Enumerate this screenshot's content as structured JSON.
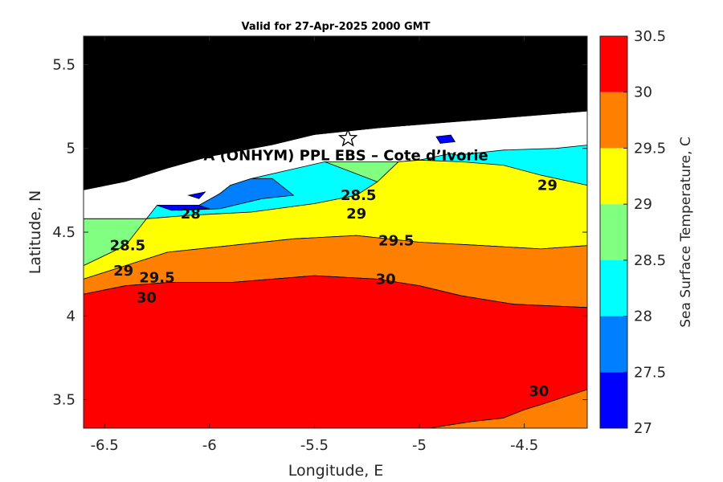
{
  "chart_data": {
    "type": "contour",
    "title": "Valid for 27-Apr-2025 2000 GMT",
    "overlay_text": "A (ONHYM) PPL EBS  – Cote d’Ivorie",
    "xlabel": "Longitude, E",
    "ylabel": "Latitude, N",
    "xlim": [
      -6.6,
      -4.2
    ],
    "ylim": [
      3.33,
      5.67
    ],
    "x_ticks": [
      -6.5,
      -6,
      -5.5,
      -5,
      -4.5
    ],
    "x_tick_labels": [
      "-6.5",
      "-6",
      "-5.5",
      "-5",
      "-4.5"
    ],
    "y_ticks": [
      3.5,
      4,
      4.5,
      5,
      5.5
    ],
    "y_tick_labels": [
      "3.5",
      "4",
      "4.5",
      "5",
      "5.5"
    ],
    "colorbar": {
      "label": "Sea Surface Temperature, C",
      "levels": [
        27,
        27.5,
        28,
        28.5,
        29,
        29.5,
        30,
        30.5
      ],
      "tick_labels": [
        "27",
        "27.5",
        "28",
        "28.5",
        "29",
        "29.5",
        "30",
        "30.5"
      ],
      "colors": [
        "#0000ff",
        "#0080ff",
        "#00ffff",
        "#80ff80",
        "#ffff00",
        "#ff8000",
        "#ff0000"
      ]
    },
    "land_color": "#000000",
    "no_data_color": "#ffffff",
    "site_marker": {
      "symbol": "star",
      "lon": -5.34,
      "lat": 5.06
    },
    "contour_labels": [
      {
        "text": "28.5",
        "lon": -5.29,
        "lat": 4.72
      },
      {
        "text": "29",
        "lon": -4.39,
        "lat": 4.78
      },
      {
        "text": "28",
        "lon": -6.09,
        "lat": 4.61
      },
      {
        "text": "29",
        "lon": -5.3,
        "lat": 4.61
      },
      {
        "text": "28.5",
        "lon": -6.39,
        "lat": 4.42
      },
      {
        "text": "29.5",
        "lon": -5.11,
        "lat": 4.45
      },
      {
        "text": "29",
        "lon": -6.41,
        "lat": 4.27
      },
      {
        "text": "29.5",
        "lon": -6.25,
        "lat": 4.23
      },
      {
        "text": "30",
        "lon": -5.16,
        "lat": 4.22
      },
      {
        "text": "30",
        "lon": -6.3,
        "lat": 4.11
      },
      {
        "text": "30",
        "lon": -4.43,
        "lat": 3.55
      }
    ],
    "regions": [
      {
        "value": "land",
        "polygon": [
          [
            -6.6,
            5.67
          ],
          [
            -4.2,
            5.67
          ],
          [
            -4.2,
            5.22
          ],
          [
            -4.6,
            5.18
          ],
          [
            -4.9,
            5.15
          ],
          [
            -5.2,
            5.12
          ],
          [
            -5.5,
            5.08
          ],
          [
            -5.7,
            5.02
          ],
          [
            -6.0,
            4.95
          ],
          [
            -6.2,
            4.88
          ],
          [
            -6.4,
            4.8
          ],
          [
            -6.6,
            4.75
          ]
        ]
      },
      {
        "value": "no-data",
        "polygon": [
          [
            -6.6,
            4.75
          ],
          [
            -6.4,
            4.8
          ],
          [
            -6.2,
            4.88
          ],
          [
            -6.0,
            4.95
          ],
          [
            -5.7,
            5.02
          ],
          [
            -5.5,
            5.08
          ],
          [
            -5.2,
            5.12
          ],
          [
            -4.9,
            5.15
          ],
          [
            -4.6,
            5.18
          ],
          [
            -4.2,
            5.22
          ],
          [
            -4.2,
            4.58
          ],
          [
            -6.6,
            4.58
          ]
        ]
      },
      {
        "value": 28.25,
        "polygon": [
          [
            -6.6,
            4.58
          ],
          [
            -6.3,
            4.58
          ],
          [
            -6.25,
            4.66
          ],
          [
            -6.05,
            4.66
          ],
          [
            -5.95,
            4.73
          ],
          [
            -5.9,
            4.78
          ],
          [
            -5.8,
            4.82
          ],
          [
            -5.45,
            4.92
          ],
          [
            -5.1,
            4.92
          ],
          [
            -5.0,
            4.93
          ],
          [
            -4.85,
            4.97
          ],
          [
            -4.82,
            4.96
          ],
          [
            -4.6,
            4.99
          ],
          [
            -4.35,
            5.0
          ],
          [
            -4.2,
            5.02
          ],
          [
            -4.2,
            4.58
          ],
          [
            -4.5,
            4.52
          ],
          [
            -5.0,
            4.54
          ],
          [
            -5.45,
            4.6
          ],
          [
            -5.7,
            4.57
          ],
          [
            -6.0,
            4.56
          ],
          [
            -6.4,
            4.42
          ],
          [
            -6.6,
            4.3
          ]
        ]
      },
      {
        "value": 27.75,
        "polygon": [
          [
            -6.25,
            4.66
          ],
          [
            -6.15,
            4.63
          ],
          [
            -5.95,
            4.64
          ],
          [
            -5.75,
            4.7
          ],
          [
            -5.6,
            4.72
          ],
          [
            -5.7,
            4.82
          ],
          [
            -5.8,
            4.82
          ],
          [
            -5.9,
            4.78
          ],
          [
            -5.95,
            4.73
          ],
          [
            -6.05,
            4.66
          ]
        ]
      },
      {
        "value": 27.25,
        "polygon": [
          [
            -6.25,
            4.66
          ],
          [
            -6.18,
            4.63
          ],
          [
            -6.0,
            4.64
          ],
          [
            -6.05,
            4.66
          ]
        ]
      },
      {
        "value": 27.25,
        "polygon": [
          [
            -6.1,
            4.72
          ],
          [
            -6.02,
            4.74
          ],
          [
            -6.05,
            4.7
          ]
        ]
      },
      {
        "value": 27.25,
        "polygon": [
          [
            -4.92,
            5.07
          ],
          [
            -4.85,
            5.08
          ],
          [
            -4.83,
            5.04
          ],
          [
            -4.9,
            5.03
          ]
        ]
      },
      {
        "value": 28.75,
        "polygon": [
          [
            -6.6,
            4.3
          ],
          [
            -6.4,
            4.42
          ],
          [
            -6.0,
            4.56
          ],
          [
            -5.7,
            4.57
          ],
          [
            -5.45,
            4.6
          ],
          [
            -5.0,
            4.54
          ],
          [
            -4.5,
            4.52
          ],
          [
            -4.2,
            4.58
          ],
          [
            -4.2,
            4.78
          ],
          [
            -4.42,
            4.84
          ],
          [
            -4.6,
            4.88
          ],
          [
            -4.8,
            4.9
          ],
          [
            -5.0,
            4.93
          ],
          [
            -5.1,
            4.92
          ],
          [
            -5.45,
            4.92
          ],
          [
            -5.2,
            4.8
          ],
          [
            -5.3,
            4.72
          ],
          [
            -5.5,
            4.67
          ],
          [
            -5.8,
            4.62
          ],
          [
            -6.1,
            4.6
          ],
          [
            -6.3,
            4.58
          ],
          [
            -6.6,
            4.58
          ]
        ]
      },
      {
        "value": 29.25,
        "polygon": [
          [
            -6.6,
            4.22
          ],
          [
            -6.4,
            4.3
          ],
          [
            -6.2,
            4.38
          ],
          [
            -5.9,
            4.42
          ],
          [
            -5.6,
            4.46
          ],
          [
            -5.3,
            4.48
          ],
          [
            -5.0,
            4.44
          ],
          [
            -4.7,
            4.42
          ],
          [
            -4.42,
            4.4
          ],
          [
            -4.2,
            4.42
          ],
          [
            -4.2,
            4.78
          ],
          [
            -4.42,
            4.84
          ],
          [
            -4.6,
            4.9
          ],
          [
            -4.8,
            4.92
          ],
          [
            -5.0,
            4.93
          ],
          [
            -5.1,
            4.92
          ],
          [
            -5.2,
            4.8
          ],
          [
            -5.3,
            4.72
          ],
          [
            -5.5,
            4.67
          ],
          [
            -5.8,
            4.62
          ],
          [
            -6.1,
            4.6
          ],
          [
            -6.3,
            4.58
          ],
          [
            -6.4,
            4.42
          ],
          [
            -6.6,
            4.3
          ]
        ]
      },
      {
        "value": 29.75,
        "polygon": [
          [
            -6.6,
            4.13
          ],
          [
            -6.4,
            4.18
          ],
          [
            -6.2,
            4.2
          ],
          [
            -5.9,
            4.2
          ],
          [
            -5.5,
            4.24
          ],
          [
            -5.2,
            4.22
          ],
          [
            -5.0,
            4.18
          ],
          [
            -4.8,
            4.12
          ],
          [
            -4.55,
            4.07
          ],
          [
            -4.2,
            4.05
          ],
          [
            -4.2,
            4.42
          ],
          [
            -4.42,
            4.4
          ],
          [
            -4.7,
            4.42
          ],
          [
            -5.0,
            4.44
          ],
          [
            -5.3,
            4.48
          ],
          [
            -5.6,
            4.46
          ],
          [
            -5.9,
            4.42
          ],
          [
            -6.2,
            4.38
          ],
          [
            -6.4,
            4.3
          ],
          [
            -6.6,
            4.22
          ]
        ]
      },
      {
        "value": 30.25,
        "polygon": [
          [
            -6.6,
            3.33
          ],
          [
            -4.95,
            3.33
          ],
          [
            -4.85,
            3.35
          ],
          [
            -4.75,
            3.37
          ],
          [
            -4.6,
            3.39
          ],
          [
            -4.5,
            3.44
          ],
          [
            -4.42,
            3.47
          ],
          [
            -4.3,
            3.52
          ],
          [
            -4.2,
            3.56
          ],
          [
            -4.2,
            4.05
          ],
          [
            -4.55,
            4.07
          ],
          [
            -4.8,
            4.12
          ],
          [
            -5.0,
            4.18
          ],
          [
            -5.2,
            4.22
          ],
          [
            -5.5,
            4.24
          ],
          [
            -5.9,
            4.2
          ],
          [
            -6.2,
            4.2
          ],
          [
            -6.4,
            4.18
          ],
          [
            -6.6,
            4.13
          ]
        ]
      },
      {
        "value": 29.75,
        "polygon": [
          [
            -4.95,
            3.33
          ],
          [
            -4.2,
            3.33
          ],
          [
            -4.2,
            3.56
          ],
          [
            -4.3,
            3.52
          ],
          [
            -4.42,
            3.47
          ],
          [
            -4.5,
            3.44
          ],
          [
            -4.6,
            3.39
          ],
          [
            -4.75,
            3.37
          ],
          [
            -4.85,
            3.35
          ]
        ]
      }
    ]
  }
}
